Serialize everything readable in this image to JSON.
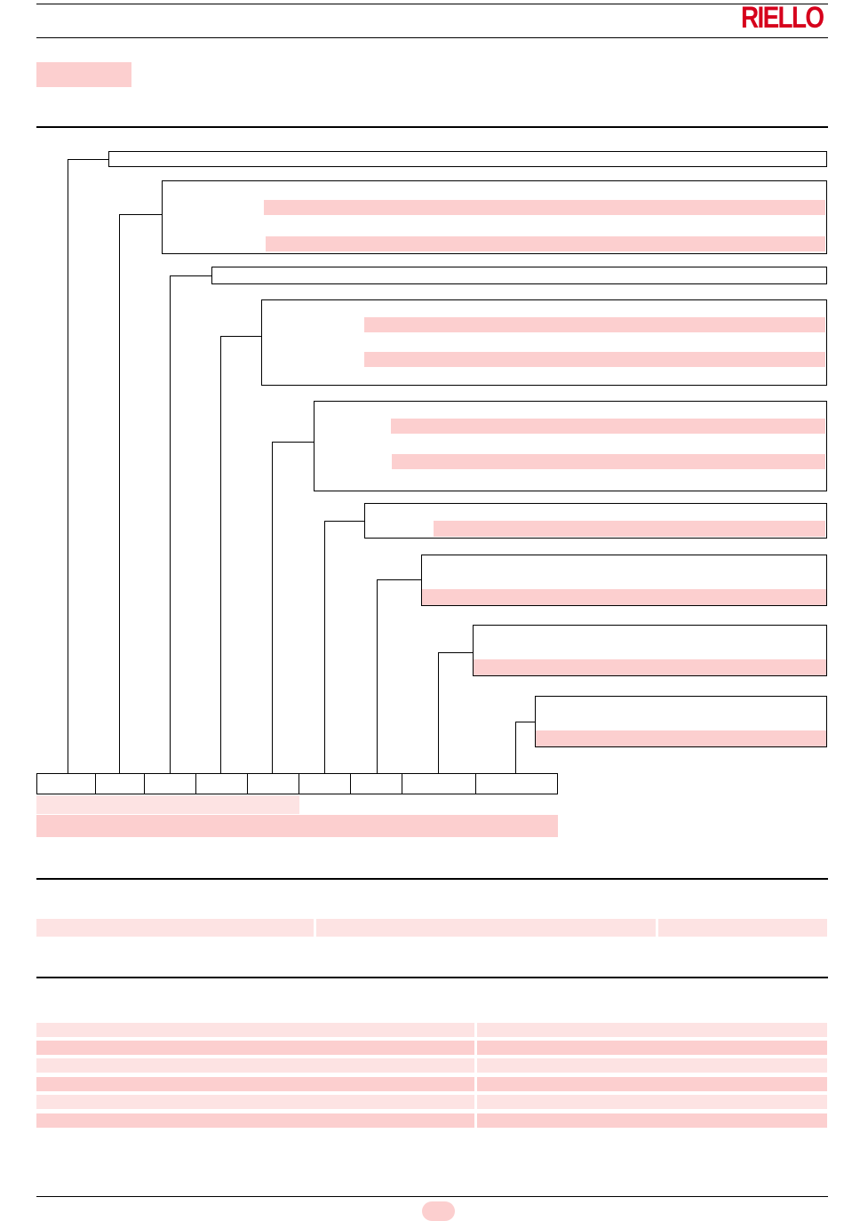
{
  "brand": {
    "logo_text": "RIELLO",
    "logo_color": "#d6001c"
  },
  "colors": {
    "highlight": "#fccfcf",
    "highlight_light": "#fde3e3",
    "rule": "#000000"
  },
  "designation_diagram": {
    "blocks": 9,
    "code_segments": 9,
    "note": ""
  }
}
